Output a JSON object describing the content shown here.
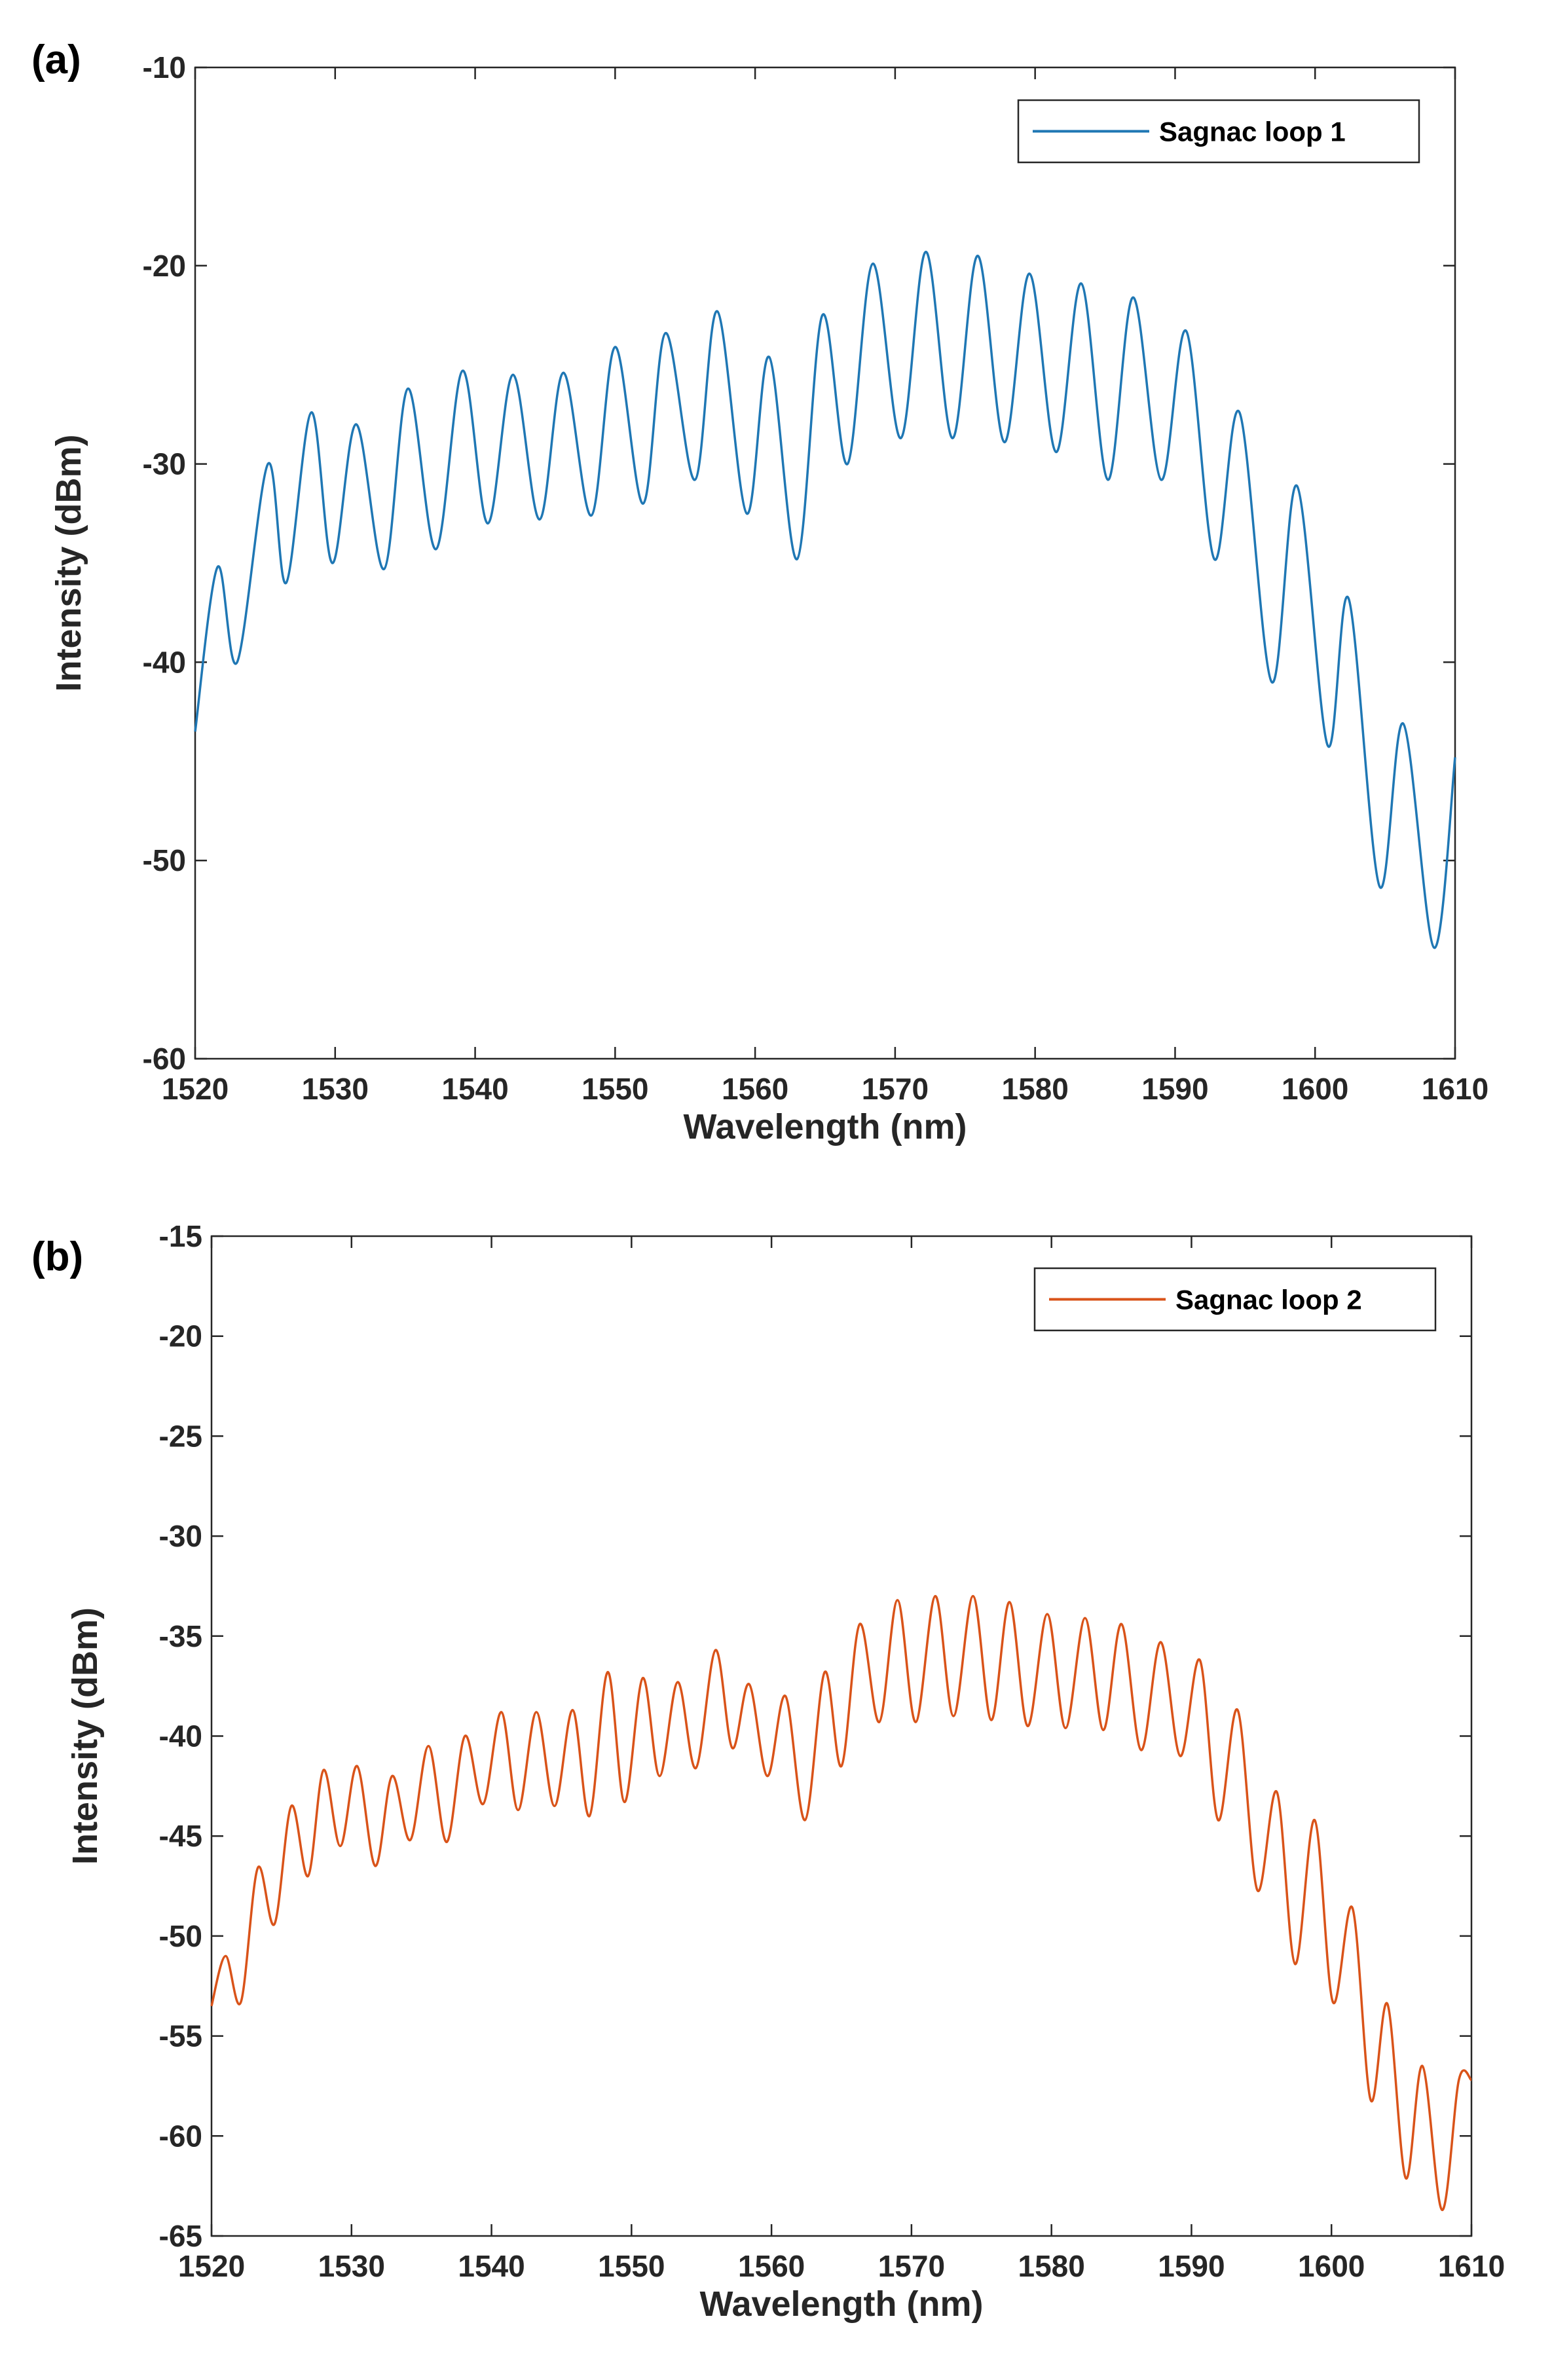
{
  "chart_data": [
    {
      "panel_label": "(a)",
      "type": "line",
      "title": "",
      "xlabel": "Wavelength (nm)",
      "ylabel": "Intensity (dBm)",
      "xlim": [
        1520,
        1610
      ],
      "ylim": [
        -60,
        -10
      ],
      "xticks": [
        1520,
        1530,
        1540,
        1550,
        1560,
        1570,
        1580,
        1590,
        1600,
        1610
      ],
      "yticks": [
        -60,
        -50,
        -40,
        -30,
        -20,
        -10
      ],
      "legend_position": "top-right",
      "series": [
        {
          "name": "Sagnac loop 1",
          "color": "#1f77b4",
          "peaks_x": [
            1521.6,
            1525.2,
            1528.3,
            1531.5,
            1535.2,
            1539.1,
            1542.7,
            1546.3,
            1550.0,
            1553.6,
            1557.3,
            1561.0,
            1564.8,
            1568.4,
            1572.2,
            1575.9,
            1579.6,
            1583.3,
            1587.0,
            1590.8,
            1594.6,
            1598.7,
            1602.4,
            1606.3,
            1610.0
          ],
          "peaks_y": [
            -35.2,
            -30.0,
            -27.4,
            -28.0,
            -26.2,
            -25.3,
            -25.5,
            -25.4,
            -24.1,
            -23.4,
            -22.3,
            -24.6,
            -22.5,
            -19.9,
            -19.3,
            -19.5,
            -20.4,
            -20.9,
            -21.6,
            -23.3,
            -27.4,
            -31.1,
            -36.8,
            -43.1,
            -44.8
          ],
          "valleys_x": [
            1520.0,
            1523.0,
            1526.5,
            1529.8,
            1533.5,
            1537.2,
            1540.9,
            1544.6,
            1548.3,
            1552.0,
            1555.7,
            1559.4,
            1563.0,
            1566.6,
            1570.4,
            1574.1,
            1577.8,
            1581.5,
            1585.2,
            1589.0,
            1592.8,
            1596.9,
            1600.9,
            1604.6,
            1608.5
          ],
          "valleys_y": [
            -43.5,
            -40.0,
            -36.0,
            -35.0,
            -35.3,
            -34.3,
            -33.0,
            -32.8,
            -32.6,
            -32.0,
            -30.8,
            -32.5,
            -34.8,
            -30.0,
            -28.7,
            -28.7,
            -28.9,
            -29.4,
            -30.8,
            -30.8,
            -34.8,
            -41.0,
            -44.2,
            -51.3,
            -54.4
          ]
        }
      ]
    },
    {
      "panel_label": "(b)",
      "type": "line",
      "title": "",
      "xlabel": "Wavelength (nm)",
      "ylabel": "Intensity (dBm)",
      "xlim": [
        1520,
        1610
      ],
      "ylim": [
        -65,
        -15
      ],
      "xticks": [
        1520,
        1530,
        1540,
        1550,
        1560,
        1570,
        1580,
        1590,
        1600,
        1610
      ],
      "yticks": [
        -65,
        -60,
        -55,
        -50,
        -45,
        -40,
        -35,
        -30,
        -25,
        -20,
        -15
      ],
      "legend_position": "top-right",
      "series": [
        {
          "name": "Sagnac loop 2",
          "color": "#d95319",
          "peaks_x": [
            1521.0,
            1523.3,
            1525.7,
            1528.0,
            1530.4,
            1532.9,
            1535.5,
            1538.1,
            1540.7,
            1543.2,
            1545.8,
            1548.3,
            1550.8,
            1553.3,
            1556.0,
            1558.4,
            1561.0,
            1563.8,
            1566.3,
            1569.0,
            1571.7,
            1574.4,
            1577.0,
            1579.7,
            1582.4,
            1585.0,
            1587.8,
            1590.6,
            1593.3,
            1596.1,
            1598.8,
            1601.5,
            1604.0,
            1606.5,
            1609.1,
            1610.0
          ],
          "peaks_y": [
            -51.0,
            -46.6,
            -43.5,
            -41.7,
            -41.5,
            -42.0,
            -40.5,
            -40.0,
            -38.8,
            -38.8,
            -38.7,
            -36.8,
            -37.1,
            -37.3,
            -35.7,
            -37.4,
            -38.0,
            -36.8,
            -34.4,
            -33.2,
            -33.0,
            -33.0,
            -33.3,
            -33.9,
            -34.1,
            -34.4,
            -35.3,
            -36.2,
            -38.7,
            -42.8,
            -44.2,
            -48.6,
            -53.4,
            -56.5,
            -57.2,
            -57.2
          ],
          "valleys_x": [
            1520.0,
            1522.1,
            1524.5,
            1526.9,
            1529.2,
            1531.7,
            1534.2,
            1536.8,
            1539.4,
            1541.9,
            1544.5,
            1547.0,
            1549.5,
            1552.0,
            1554.6,
            1557.2,
            1559.7,
            1562.4,
            1565.0,
            1567.7,
            1570.3,
            1573.0,
            1575.7,
            1578.3,
            1581.0,
            1583.7,
            1586.4,
            1589.2,
            1591.9,
            1594.7,
            1597.4,
            1600.1,
            1602.8,
            1605.3,
            1607.9
          ],
          "valleys_y": [
            -53.5,
            -53.3,
            -49.4,
            -47.0,
            -45.5,
            -46.5,
            -45.2,
            -45.3,
            -43.4,
            -43.7,
            -43.5,
            -44.0,
            -43.3,
            -42.0,
            -41.6,
            -40.6,
            -42.0,
            -44.2,
            -41.5,
            -39.3,
            -39.3,
            -39.0,
            -39.2,
            -39.5,
            -39.6,
            -39.7,
            -40.7,
            -41.0,
            -44.2,
            -47.7,
            -51.4,
            -53.3,
            -58.2,
            -62.1,
            -63.7
          ]
        }
      ]
    }
  ]
}
